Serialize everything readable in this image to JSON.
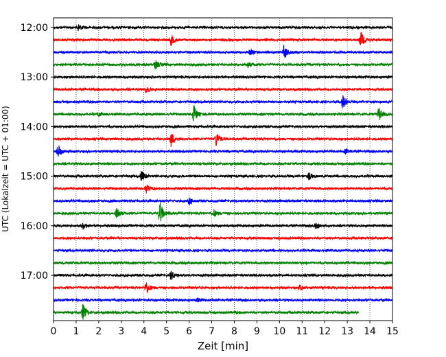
{
  "chart_data": {
    "type": "line",
    "title": "",
    "xlabel": "Zeit  [min]",
    "ylabel": "UTC (Lokalzeit = UTC + 01:00)",
    "xlim": [
      0,
      15
    ],
    "x_ticks": [
      0,
      1,
      2,
      3,
      4,
      5,
      6,
      7,
      8,
      9,
      10,
      11,
      12,
      13,
      14,
      15
    ],
    "x_grid": "dotted vertical lines at each minute",
    "y_tick_labels": [
      "12:00",
      "13:00",
      "14:00",
      "15:00",
      "16:00",
      "17:00"
    ],
    "trace_interval_minutes": 15,
    "color_cycle": [
      "#000000",
      "#ff0000",
      "#0000ff",
      "#008000"
    ],
    "series": [
      {
        "start": "12:00",
        "color": "#000000",
        "events": [
          [
            1.1,
            5
          ]
        ]
      },
      {
        "start": "12:15",
        "color": "#ff0000",
        "events": [
          [
            5.2,
            8
          ],
          [
            13.6,
            12
          ]
        ]
      },
      {
        "start": "12:30",
        "color": "#0000ff",
        "events": [
          [
            8.7,
            4
          ],
          [
            10.2,
            11
          ]
        ]
      },
      {
        "start": "12:45",
        "color": "#008000",
        "events": [
          [
            4.5,
            7
          ],
          [
            8.6,
            4
          ]
        ]
      },
      {
        "start": "13:00",
        "color": "#000000",
        "events": []
      },
      {
        "start": "13:15",
        "color": "#ff0000",
        "events": [
          [
            4.1,
            5
          ]
        ]
      },
      {
        "start": "13:30",
        "color": "#0000ff",
        "events": [
          [
            12.8,
            10
          ]
        ]
      },
      {
        "start": "13:45",
        "color": "#008000",
        "events": [
          [
            2.0,
            3
          ],
          [
            6.2,
            14
          ],
          [
            14.4,
            10
          ]
        ]
      },
      {
        "start": "14:00",
        "color": "#000000",
        "events": []
      },
      {
        "start": "14:15",
        "color": "#ff0000",
        "events": [
          [
            5.2,
            11
          ],
          [
            7.2,
            11
          ]
        ]
      },
      {
        "start": "14:30",
        "color": "#0000ff",
        "events": [
          [
            0.2,
            10
          ],
          [
            12.9,
            4
          ]
        ]
      },
      {
        "start": "14:45",
        "color": "#008000",
        "events": []
      },
      {
        "start": "15:00",
        "color": "#000000",
        "events": [
          [
            3.9,
            9
          ],
          [
            11.3,
            5
          ]
        ]
      },
      {
        "start": "15:15",
        "color": "#ff0000",
        "events": [
          [
            4.1,
            6
          ]
        ]
      },
      {
        "start": "15:30",
        "color": "#0000ff",
        "events": [
          [
            6.0,
            5
          ]
        ]
      },
      {
        "start": "15:45",
        "color": "#008000",
        "events": [
          [
            2.8,
            9
          ],
          [
            4.7,
            18
          ],
          [
            7.1,
            5
          ]
        ]
      },
      {
        "start": "16:00",
        "color": "#000000",
        "events": [
          [
            1.3,
            5
          ],
          [
            11.6,
            6
          ]
        ]
      },
      {
        "start": "16:15",
        "color": "#ff0000",
        "events": []
      },
      {
        "start": "16:30",
        "color": "#0000ff",
        "events": []
      },
      {
        "start": "16:45",
        "color": "#008000",
        "events": []
      },
      {
        "start": "17:00",
        "color": "#000000",
        "events": [
          [
            5.2,
            7
          ]
        ]
      },
      {
        "start": "17:15",
        "color": "#ff0000",
        "events": [
          [
            4.1,
            10
          ],
          [
            10.9,
            4
          ]
        ]
      },
      {
        "start": "17:30",
        "color": "#0000ff",
        "events": [
          [
            6.4,
            3
          ]
        ]
      },
      {
        "start": "17:45",
        "color": "#008000",
        "events": [
          [
            1.3,
            12
          ]
        ],
        "ends_at": 13.5
      }
    ]
  }
}
